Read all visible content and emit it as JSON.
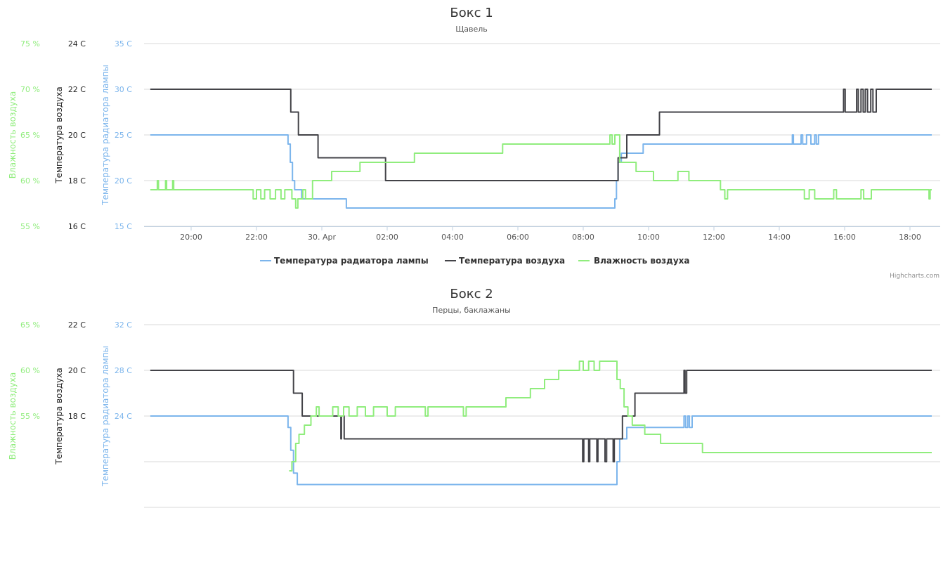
{
  "chart_data": [
    {
      "type": "line",
      "step": true,
      "title": "Бокс 1",
      "subtitle": "Щавель",
      "x_range": [
        "29 Apr 18:45",
        "30 Apr 18:40"
      ],
      "x_ticks": [
        "20:00",
        "22:00",
        "30. Apr",
        "02:00",
        "04:00",
        "06:00",
        "08:00",
        "10:00",
        "12:00",
        "14:00",
        "16:00",
        "18:00"
      ],
      "grid": true,
      "legend_position": "bottom",
      "credits": "Highcharts.com",
      "y_axes": [
        {
          "id": "hum",
          "title": "Влажность воздуха",
          "color": "#90ed7d",
          "range": [
            55,
            75
          ],
          "ticks": [
            "75 %",
            "70 %",
            "65 %",
            "60 %",
            "55 %"
          ]
        },
        {
          "id": "air",
          "title": "Температура воздуха",
          "color": "#333333",
          "range": [
            16,
            24
          ],
          "ticks": [
            "24 C",
            "22 C",
            "20 C",
            "18 C",
            "16 C"
          ]
        },
        {
          "id": "lamp",
          "title": "Температура радиатора лампы",
          "color": "#7cb5ec",
          "range": [
            15,
            35
          ],
          "ticks": [
            "35 C",
            "30 C",
            "25 C",
            "20 C",
            "15 C"
          ]
        }
      ],
      "series": [
        {
          "name": "Температура радиатора лампы",
          "color": "#7cb5ec",
          "axis": "lamp",
          "points": [
            [
              "29 Apr 18:45",
              25
            ],
            [
              "29 Apr 22:58",
              24
            ],
            [
              "29 Apr 23:02",
              22
            ],
            [
              "29 Apr 23:06",
              20
            ],
            [
              "29 Apr 23:10",
              19
            ],
            [
              "29 Apr 23:23",
              18
            ],
            [
              "30 Apr 00:45",
              17
            ],
            [
              "30 Apr 08:58",
              18
            ],
            [
              "30 Apr 09:01",
              20
            ],
            [
              "30 Apr 09:04",
              22
            ],
            [
              "30 Apr 09:10",
              23
            ],
            [
              "30 Apr 09:50",
              24
            ],
            [
              "30 Apr 14:24",
              25
            ],
            [
              "30 Apr 14:26",
              24
            ],
            [
              "30 Apr 14:40",
              25
            ],
            [
              "30 Apr 14:43",
              24
            ],
            [
              "30 Apr 14:50",
              25
            ],
            [
              "30 Apr 14:58",
              24
            ],
            [
              "30 Apr 15:05",
              25
            ],
            [
              "30 Apr 15:08",
              24
            ],
            [
              "30 Apr 15:12",
              25
            ],
            [
              "30 Apr 18:40",
              25
            ]
          ]
        },
        {
          "name": "Температура воздуха",
          "color": "#434348",
          "axis": "air",
          "points": [
            [
              "29 Apr 18:45",
              22
            ],
            [
              "29 Apr 23:03",
              21
            ],
            [
              "29 Apr 23:17",
              20
            ],
            [
              "29 Apr 23:53",
              19
            ],
            [
              "30 Apr 01:57",
              18
            ],
            [
              "30 Apr 09:04",
              19
            ],
            [
              "30 Apr 09:20",
              20
            ],
            [
              "30 Apr 10:20",
              21
            ],
            [
              "30 Apr 15:58",
              22
            ],
            [
              "30 Apr 16:01",
              21
            ],
            [
              "30 Apr 16:22",
              22
            ],
            [
              "30 Apr 16:25",
              21
            ],
            [
              "30 Apr 16:30",
              22
            ],
            [
              "30 Apr 16:34",
              21
            ],
            [
              "30 Apr 16:38",
              22
            ],
            [
              "30 Apr 16:42",
              21
            ],
            [
              "30 Apr 16:48",
              22
            ],
            [
              "30 Apr 16:52",
              21
            ],
            [
              "30 Apr 16:58",
              22
            ],
            [
              "30 Apr 18:40",
              22
            ]
          ]
        },
        {
          "name": "Влажность воздуха",
          "color": "#90ed7d",
          "axis": "hum",
          "points": [
            [
              "29 Apr 18:45",
              59
            ],
            [
              "29 Apr 18:58",
              60
            ],
            [
              "29 Apr 19:00",
              59
            ],
            [
              "29 Apr 19:13",
              60
            ],
            [
              "29 Apr 19:15",
              59
            ],
            [
              "29 Apr 19:26",
              60
            ],
            [
              "29 Apr 19:28",
              59
            ],
            [
              "29 Apr 21:54",
              58
            ],
            [
              "29 Apr 22:00",
              59
            ],
            [
              "29 Apr 22:08",
              58
            ],
            [
              "29 Apr 22:15",
              59
            ],
            [
              "29 Apr 22:25",
              58
            ],
            [
              "29 Apr 22:35",
              59
            ],
            [
              "29 Apr 22:45",
              58
            ],
            [
              "29 Apr 22:52",
              59
            ],
            [
              "29 Apr 23:05",
              58
            ],
            [
              "29 Apr 23:12",
              57
            ],
            [
              "29 Apr 23:16",
              58
            ],
            [
              "29 Apr 23:25",
              59
            ],
            [
              "29 Apr 23:30",
              58
            ],
            [
              "29 Apr 23:43",
              60
            ],
            [
              "30 Apr 00:18",
              61
            ],
            [
              "30 Apr 01:10",
              62
            ],
            [
              "30 Apr 02:50",
              63
            ],
            [
              "30 Apr 05:32",
              64
            ],
            [
              "30 Apr 08:49",
              65
            ],
            [
              "30 Apr 08:53",
              64
            ],
            [
              "30 Apr 08:58",
              65
            ],
            [
              "30 Apr 09:07",
              62
            ],
            [
              "30 Apr 09:37",
              61
            ],
            [
              "30 Apr 10:09",
              60
            ],
            [
              "30 Apr 10:54",
              61
            ],
            [
              "30 Apr 11:14",
              60
            ],
            [
              "30 Apr 12:12",
              59
            ],
            [
              "30 Apr 12:20",
              58
            ],
            [
              "30 Apr 12:25",
              59
            ],
            [
              "30 Apr 14:46",
              58
            ],
            [
              "30 Apr 14:55",
              59
            ],
            [
              "30 Apr 15:05",
              58
            ],
            [
              "30 Apr 15:40",
              59
            ],
            [
              "30 Apr 15:45",
              58
            ],
            [
              "30 Apr 16:30",
              59
            ],
            [
              "30 Apr 16:35",
              58
            ],
            [
              "30 Apr 16:49",
              59
            ],
            [
              "30 Apr 18:35",
              58
            ],
            [
              "30 Apr 18:37",
              59
            ],
            [
              "30 Apr 18:40",
              59
            ]
          ]
        }
      ]
    },
    {
      "type": "line",
      "step": true,
      "title": "Бокс 2",
      "subtitle": "Перцы, баклажаны",
      "x_range": [
        "29 Apr 18:45",
        "30 Apr 18:40"
      ],
      "grid": true,
      "y_axes": [
        {
          "id": "hum",
          "title": "Влажность воздуха",
          "color": "#90ed7d",
          "range": [
            45,
            65
          ],
          "ticks": [
            "65 %",
            "60 %",
            "55 %"
          ]
        },
        {
          "id": "air",
          "title": "Температура воздуха",
          "color": "#333333",
          "range": [
            14,
            22
          ],
          "ticks": [
            "22 C",
            "20 C",
            "18 C"
          ]
        },
        {
          "id": "lamp",
          "title": "Температура радиатора лампы",
          "color": "#7cb5ec",
          "range": [
            16,
            32
          ],
          "ticks": [
            "32 C",
            "28 C",
            "24 C"
          ]
        }
      ],
      "series": [
        {
          "name": "Температура радиатора лампы",
          "color": "#7cb5ec",
          "axis": "lamp",
          "points": [
            [
              "29 Apr 18:45",
              24
            ],
            [
              "29 Apr 22:58",
              23
            ],
            [
              "29 Apr 23:03",
              21
            ],
            [
              "29 Apr 23:08",
              19
            ],
            [
              "29 Apr 23:15",
              18
            ],
            [
              "30 Apr 09:02",
              20
            ],
            [
              "30 Apr 09:07",
              22
            ],
            [
              "30 Apr 09:20",
              23
            ],
            [
              "30 Apr 11:05",
              24
            ],
            [
              "30 Apr 11:08",
              23
            ],
            [
              "30 Apr 11:12",
              24
            ],
            [
              "30 Apr 11:15",
              23
            ],
            [
              "30 Apr 11:20",
              24
            ],
            [
              "30 Apr 18:40",
              24
            ]
          ]
        },
        {
          "name": "Температура воздуха",
          "color": "#434348",
          "axis": "air",
          "points": [
            [
              "29 Apr 18:45",
              20
            ],
            [
              "29 Apr 23:08",
              19
            ],
            [
              "29 Apr 23:24",
              18
            ],
            [
              "30 Apr 00:35",
              17
            ],
            [
              "30 Apr 00:36",
              18
            ],
            [
              "30 Apr 00:41",
              17
            ],
            [
              "30 Apr 07:59",
              16
            ],
            [
              "30 Apr 08:01",
              17
            ],
            [
              "30 Apr 08:10",
              16
            ],
            [
              "30 Apr 08:12",
              17
            ],
            [
              "30 Apr 08:25",
              16
            ],
            [
              "30 Apr 08:27",
              17
            ],
            [
              "30 Apr 08:40",
              16
            ],
            [
              "30 Apr 08:43",
              17
            ],
            [
              "30 Apr 08:55",
              16
            ],
            [
              "30 Apr 08:57",
              17
            ],
            [
              "30 Apr 09:12",
              18
            ],
            [
              "30 Apr 09:35",
              19
            ],
            [
              "30 Apr 11:05",
              20
            ],
            [
              "30 Apr 11:07",
              19
            ],
            [
              "30 Apr 11:10",
              20
            ],
            [
              "30 Apr 18:40",
              20
            ]
          ]
        },
        {
          "name": "Влажность воздуха",
          "color": "#90ed7d",
          "axis": "hum",
          "points": [
            [
              "29 Apr 23:00",
              49
            ],
            [
              "29 Apr 23:05",
              50
            ],
            [
              "29 Apr 23:12",
              52
            ],
            [
              "29 Apr 23:18",
              53
            ],
            [
              "29 Apr 23:28",
              54
            ],
            [
              "29 Apr 23:40",
              55
            ],
            [
              "29 Apr 23:50",
              56
            ],
            [
              "29 Apr 23:55",
              55
            ],
            [
              "30 Apr 00:20",
              56
            ],
            [
              "30 Apr 00:30",
              55
            ],
            [
              "30 Apr 00:40",
              56
            ],
            [
              "30 Apr 00:50",
              55
            ],
            [
              "30 Apr 01:05",
              56
            ],
            [
              "30 Apr 01:20",
              55
            ],
            [
              "30 Apr 01:35",
              56
            ],
            [
              "30 Apr 02:00",
              55
            ],
            [
              "30 Apr 02:15",
              56
            ],
            [
              "30 Apr 03:10",
              55
            ],
            [
              "30 Apr 03:15",
              56
            ],
            [
              "30 Apr 04:20",
              55
            ],
            [
              "30 Apr 04:25",
              56
            ],
            [
              "30 Apr 05:38",
              57
            ],
            [
              "30 Apr 06:23",
              58
            ],
            [
              "30 Apr 06:49",
              59
            ],
            [
              "30 Apr 07:15",
              60
            ],
            [
              "30 Apr 07:53",
              61
            ],
            [
              "30 Apr 08:00",
              60
            ],
            [
              "30 Apr 08:10",
              61
            ],
            [
              "30 Apr 08:20",
              60
            ],
            [
              "30 Apr 08:30",
              61
            ],
            [
              "30 Apr 09:02",
              59
            ],
            [
              "30 Apr 09:08",
              58
            ],
            [
              "30 Apr 09:15",
              56
            ],
            [
              "30 Apr 09:22",
              55
            ],
            [
              "30 Apr 09:30",
              54
            ],
            [
              "30 Apr 09:53",
              53
            ],
            [
              "30 Apr 10:22",
              52
            ],
            [
              "30 Apr 11:39",
              51
            ],
            [
              "30 Apr 18:40",
              51
            ]
          ]
        }
      ]
    }
  ]
}
